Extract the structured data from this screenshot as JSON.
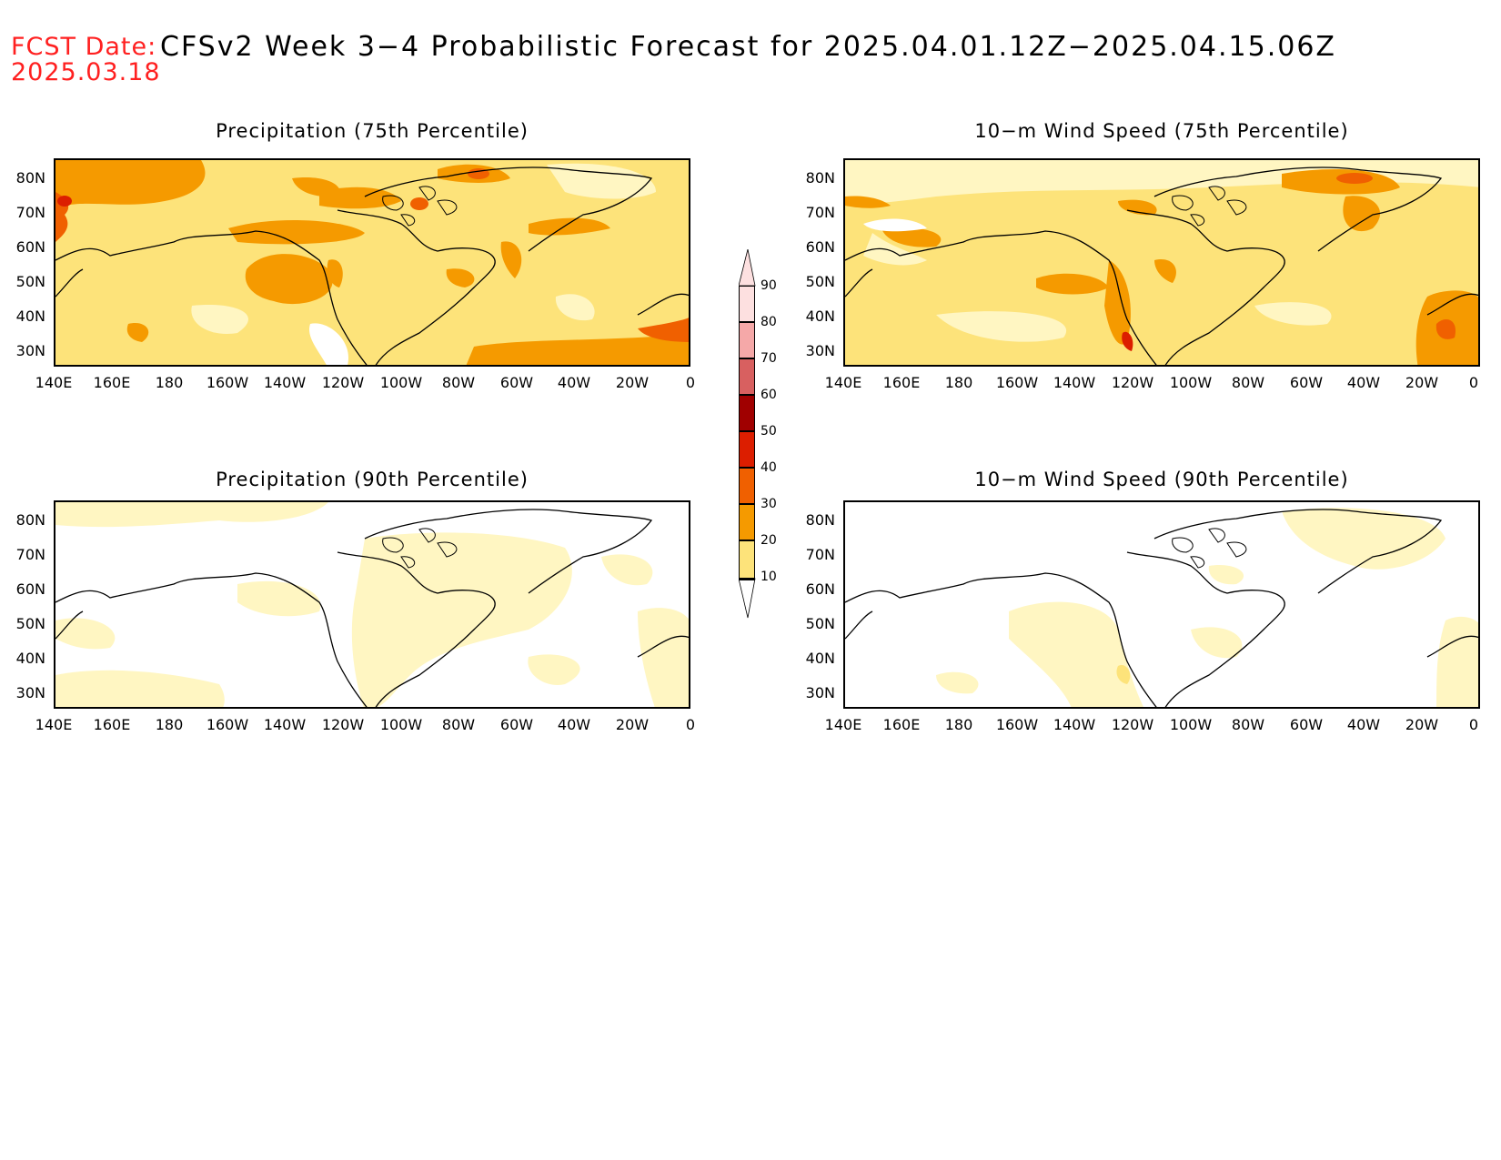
{
  "header": {
    "fcst_label": "FCST Date:",
    "fcst_date": "2025.03.18",
    "title": "CFSv2 Week 3−4 Probabilistic Forecast for 2025.04.01.12Z−2025.04.15.06Z"
  },
  "panels": [
    {
      "title": "Precipitation (75th Percentile)",
      "variable": "precipitation",
      "percentile": 75
    },
    {
      "title": "10−m Wind Speed (75th Percentile)",
      "variable": "wind",
      "percentile": 75
    },
    {
      "title": "Precipitation (90th Percentile)",
      "variable": "precipitation",
      "percentile": 90
    },
    {
      "title": "10−m Wind Speed (90th Percentile)",
      "variable": "wind",
      "percentile": 90
    }
  ],
  "lat_labels": [
    "80N",
    "70N",
    "60N",
    "50N",
    "40N",
    "30N"
  ],
  "lon_labels": [
    "140E",
    "160E",
    "180",
    "160W",
    "140W",
    "120W",
    "100W",
    "80W",
    "60W",
    "40W",
    "20W",
    "0"
  ],
  "colorbar": {
    "labels": [
      "90",
      "80",
      "70",
      "60",
      "50",
      "40",
      "30",
      "20",
      "10"
    ],
    "colors": [
      "#fde0e0",
      "#f5a8a8",
      "#d86060",
      "#a00000",
      "#dc1e00",
      "#f06000",
      "#f59a00",
      "#fde37a",
      "#fff6c2"
    ],
    "below_color": "#ffffff"
  }
}
